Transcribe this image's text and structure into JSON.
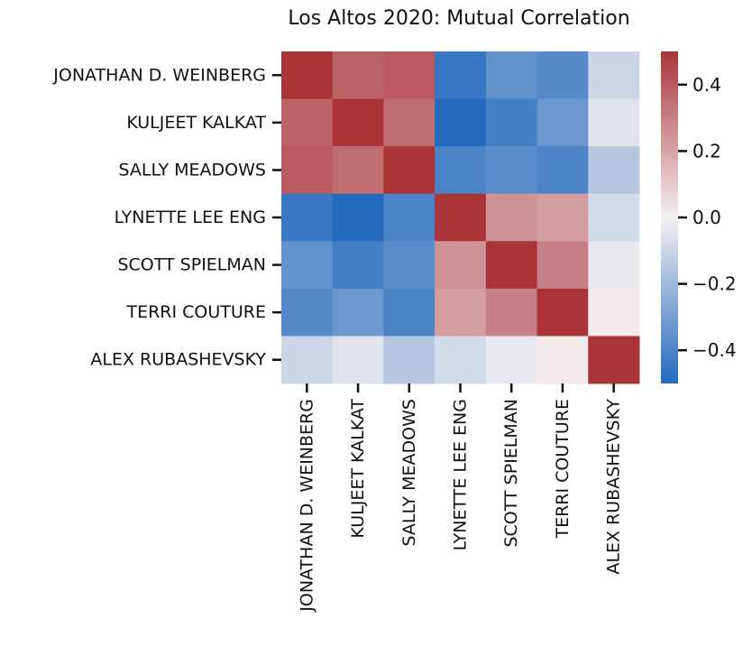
{
  "chart_data": {
    "type": "heatmap",
    "title": "Los Altos 2020: Mutual Correlation",
    "rows": [
      "JONATHAN D. WEINBERG",
      "KULJEET KALKAT",
      "SALLY MEADOWS",
      "LYNETTE LEE ENG",
      "SCOTT SPIELMAN",
      "TERRI COUTURE",
      "ALEX RUBASHEVSKY"
    ],
    "columns": [
      "JONATHAN D. WEINBERG",
      "KULJEET KALKAT",
      "SALLY MEADOWS",
      "LYNETTE LEE ENG",
      "SCOTT SPIELMAN",
      "TERRI COUTURE",
      "ALEX RUBASHEVSKY"
    ],
    "values": [
      [
        1.0,
        0.38,
        0.4,
        -0.45,
        -0.35,
        -0.38,
        -0.1
      ],
      [
        0.38,
        1.0,
        0.35,
        -0.5,
        -0.42,
        -0.33,
        -0.05
      ],
      [
        0.4,
        0.35,
        1.0,
        -0.4,
        -0.37,
        -0.4,
        -0.15
      ],
      [
        -0.45,
        -0.5,
        -0.4,
        1.0,
        0.25,
        0.22,
        -0.08
      ],
      [
        -0.35,
        -0.42,
        -0.37,
        0.25,
        1.0,
        0.3,
        -0.03
      ],
      [
        -0.38,
        -0.33,
        -0.4,
        0.22,
        0.3,
        1.0,
        0.02
      ],
      [
        -0.1,
        -0.05,
        -0.15,
        -0.08,
        -0.03,
        0.02,
        1.0
      ]
    ],
    "vmin": -0.5,
    "vmax": 0.5,
    "colormap": "vlag",
    "colors": {
      "low": "#2369bd",
      "mid": "#f5f0f1",
      "high": "#a93539"
    },
    "colorbar_ticks": [
      0.4,
      0.2,
      0.0,
      -0.2,
      -0.4
    ],
    "colorbar_tick_labels": [
      "0.4",
      "0.2",
      "0.0",
      "−0.2",
      "−0.4"
    ]
  }
}
